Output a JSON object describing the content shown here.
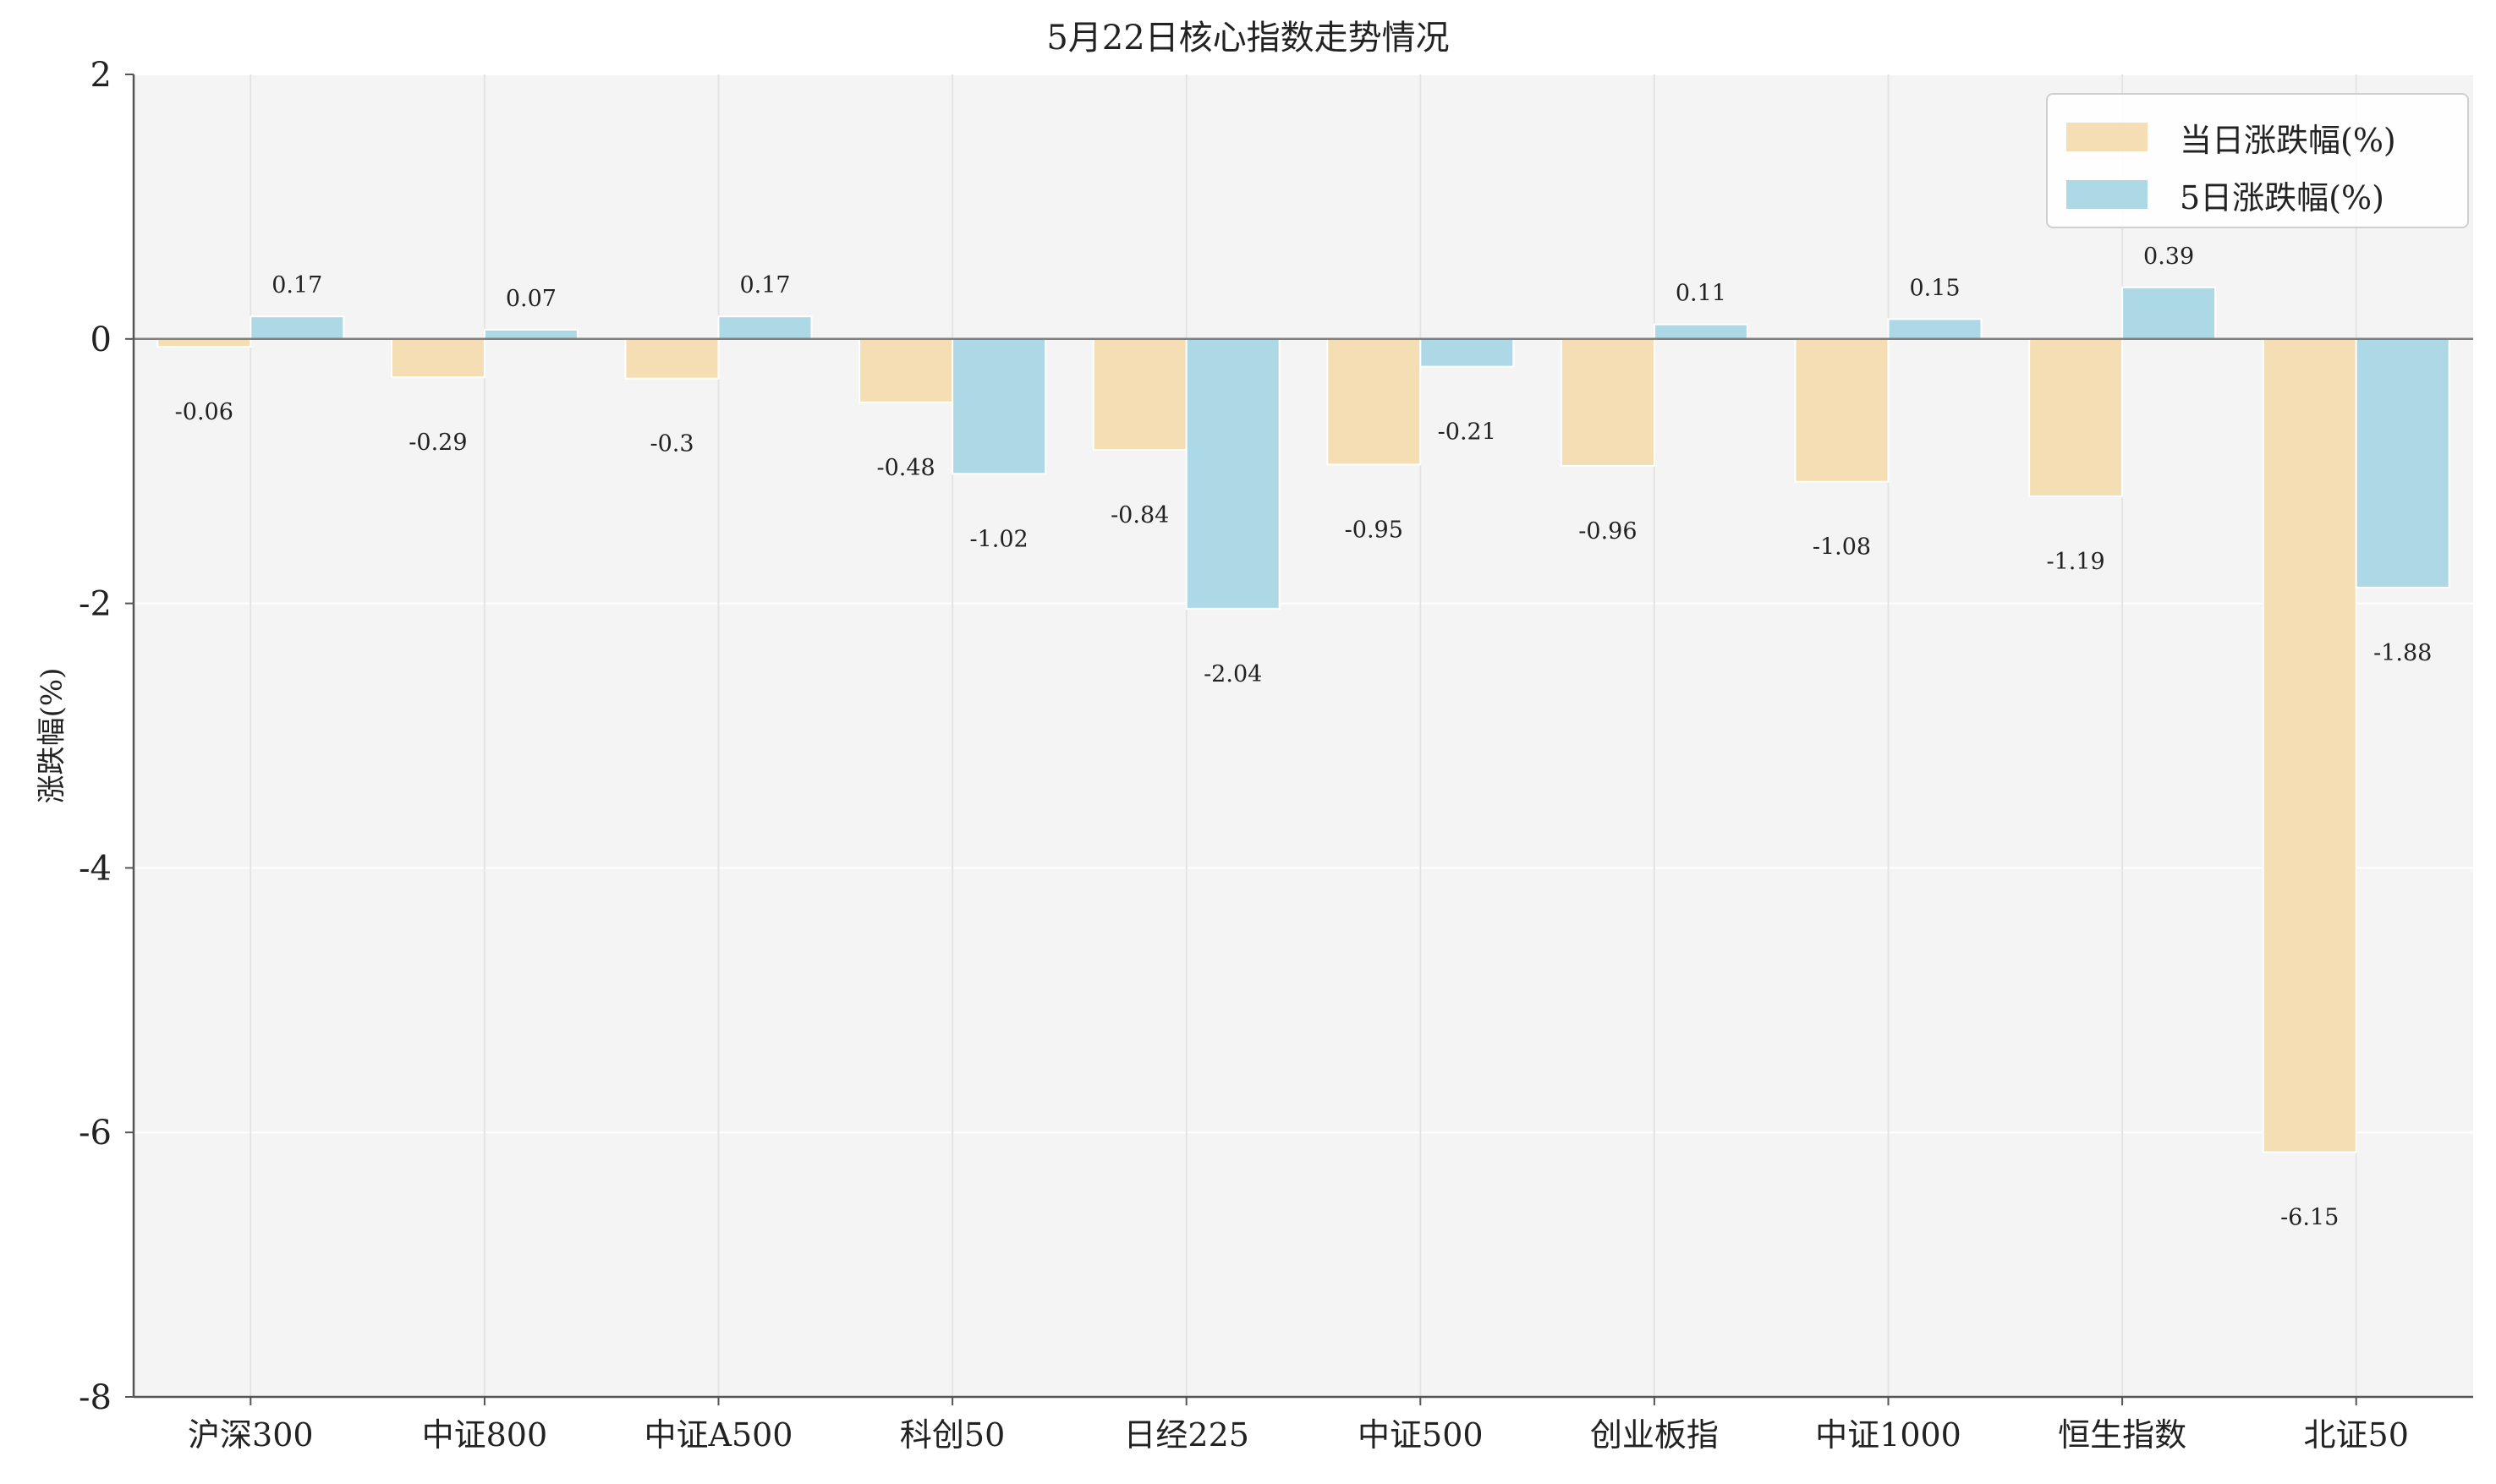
{
  "chart_data": {
    "type": "bar",
    "title": "5月22日核心指数走势情况",
    "xlabel": "",
    "ylabel": "涨跌幅(%)",
    "ylim": [
      -8,
      2
    ],
    "yticks": [
      "2",
      "0",
      "-2",
      "-4",
      "-6",
      "-8"
    ],
    "categories": [
      "沪深300",
      "中证800",
      "中证A500",
      "科创50",
      "日经225",
      "中证500",
      "创业板指",
      "中证1000",
      "恒生指数",
      "北证50"
    ],
    "series": [
      {
        "name": "当日涨跌幅(%)",
        "color": "#f5deb3",
        "values": [
          -0.06,
          -0.29,
          -0.3,
          -0.48,
          -0.84,
          -0.95,
          -0.96,
          -1.08,
          -1.19,
          -6.15
        ],
        "labels": [
          "-0.06",
          "-0.29",
          "-0.3",
          "-0.48",
          "-0.84",
          "-0.95",
          "-0.96",
          "-1.08",
          "-1.19",
          "-6.15"
        ]
      },
      {
        "name": "5日涨跌幅(%)",
        "color": "#add8e6",
        "values": [
          0.17,
          0.07,
          0.17,
          -1.02,
          -2.04,
          -0.21,
          0.11,
          0.15,
          0.39,
          -1.88
        ],
        "labels": [
          "0.17",
          "0.07",
          "0.17",
          "-1.02",
          "-2.04",
          "-0.21",
          "0.11",
          "0.15",
          "0.39",
          "-1.88"
        ]
      }
    ],
    "grid": true,
    "legend_position": "top-right",
    "colors": {
      "plot_background": "#f4f4f4",
      "grid": "#e4e4e4",
      "zero_line": "#808080",
      "axis": "#555555"
    }
  }
}
